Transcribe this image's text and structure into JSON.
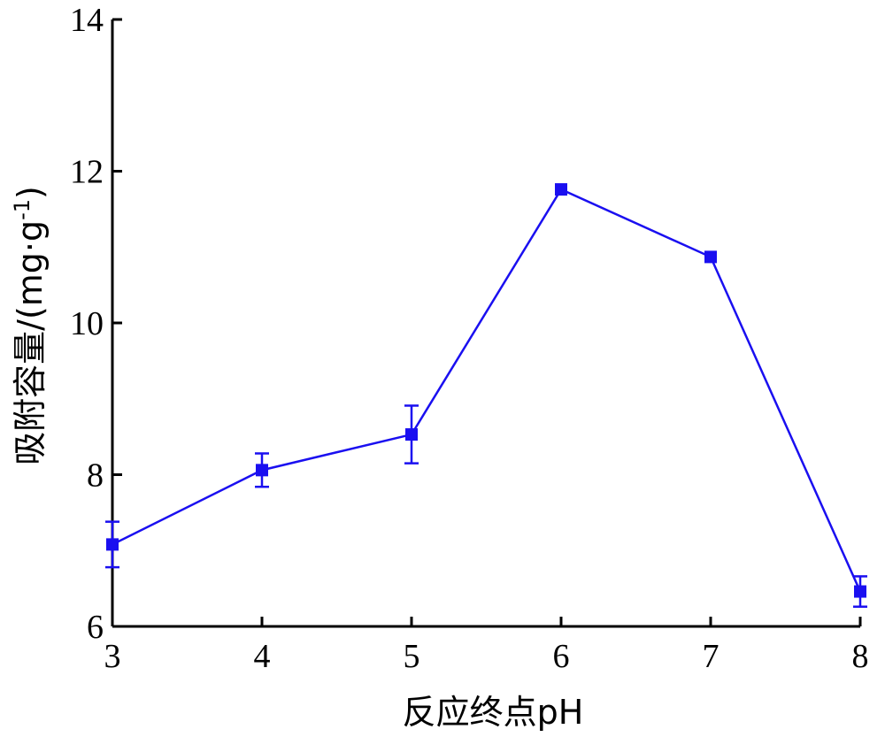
{
  "chart_data": {
    "type": "line",
    "xlabel": "反应终点pH",
    "ylabel": "吸附容量/(mg·g",
    "ylabel_sup": "-1",
    "ylabel_close": ")",
    "xlim": [
      3,
      8
    ],
    "ylim": [
      6,
      14
    ],
    "xticks": [
      3,
      4,
      5,
      6,
      7,
      8
    ],
    "yticks": [
      6,
      8,
      10,
      12,
      14
    ],
    "grid": false,
    "series_color": "#1a0ff0",
    "x": [
      3,
      4,
      5,
      6,
      7,
      8
    ],
    "y": [
      7.08,
      8.06,
      8.53,
      11.76,
      10.87,
      6.46
    ],
    "error": [
      0.3,
      0.22,
      0.38,
      0.0,
      0.0,
      0.2
    ]
  }
}
